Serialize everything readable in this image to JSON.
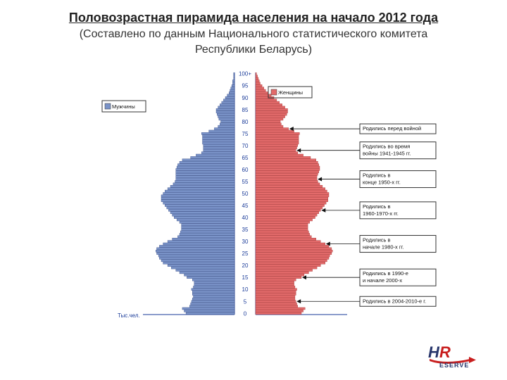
{
  "title": "Половозрастная пирамида населения на начало 2012 года",
  "subtitle_line1": "(Составлено по данным Национального статистического комитета",
  "subtitle_line2": "Республики Беларусь)",
  "chart": {
    "type": "population-pyramid",
    "background_color": "#ffffff",
    "male_color": "#7a93c8",
    "male_border_color": "#3a4f88",
    "female_color": "#e26a6a",
    "female_border_color": "#a83636",
    "axis_color": "#1a3b99",
    "grid_color": "#888888",
    "title_fontsize": 18,
    "label_fontsize": 8,
    "legend_male": "Мужчины",
    "legend_female": "Женщины",
    "x_axis_label": "Тыс.чел.",
    "age_ticks": [
      "0",
      "5",
      "10",
      "15",
      "20",
      "25",
      "30",
      "35",
      "40",
      "45",
      "50",
      "55",
      "60",
      "65",
      "70",
      "75",
      "80",
      "85",
      "90",
      "95",
      "100+"
    ],
    "x_max": 100,
    "male_values": [
      53,
      55,
      57,
      49,
      48,
      47,
      46,
      45,
      46,
      46,
      47,
      45,
      44,
      44,
      46,
      52,
      55,
      60,
      64,
      69,
      73,
      78,
      80,
      82,
      83,
      85,
      86,
      85,
      82,
      78,
      73,
      68,
      62,
      60,
      59,
      58,
      58,
      58,
      60,
      63,
      66,
      68,
      70,
      72,
      74,
      76,
      78,
      80,
      80,
      80,
      78,
      76,
      73,
      70,
      67,
      65,
      64,
      64,
      64,
      64,
      64,
      63,
      62,
      60,
      57,
      48,
      42,
      36,
      34,
      34,
      34,
      35,
      35,
      35,
      35,
      36,
      28,
      22,
      18,
      16,
      15,
      17,
      18,
      19,
      20,
      20,
      18,
      16,
      14,
      12,
      10,
      8,
      6,
      5,
      4,
      3,
      2,
      2,
      1,
      1,
      1
    ],
    "female_values": [
      50,
      52,
      54,
      46,
      45,
      44,
      43,
      43,
      44,
      44,
      45,
      43,
      42,
      42,
      44,
      50,
      53,
      58,
      62,
      67,
      71,
      76,
      78,
      80,
      81,
      83,
      84,
      83,
      80,
      76,
      71,
      66,
      61,
      59,
      58,
      57,
      57,
      57,
      59,
      62,
      65,
      67,
      69,
      71,
      73,
      75,
      77,
      79,
      79,
      80,
      80,
      78,
      76,
      73,
      70,
      68,
      67,
      67,
      68,
      69,
      70,
      70,
      69,
      68,
      66,
      60,
      52,
      46,
      44,
      45,
      46,
      47,
      47,
      47,
      47,
      48,
      42,
      36,
      30,
      28,
      27,
      30,
      32,
      34,
      35,
      35,
      32,
      29,
      26,
      23,
      20,
      17,
      14,
      11,
      9,
      7,
      5,
      4,
      3,
      2,
      1
    ],
    "annotations": [
      {
        "age": 77,
        "text": "Родились перед войной"
      },
      {
        "age": 68,
        "text_lines": [
          "Родились во время",
          "войны 1941-1945 гг."
        ]
      },
      {
        "age": 56,
        "text_lines": [
          "Родились в",
          "конце 1950-х гг."
        ]
      },
      {
        "age": 43,
        "text_lines": [
          "Родились в",
          "1960-1970-х гг."
        ]
      },
      {
        "age": 29,
        "text_lines": [
          "Родились в",
          "начале 1980-х гг."
        ]
      },
      {
        "age": 15,
        "text_lines": [
          "Родились в 1990-е",
          "и начале 2000-х"
        ]
      },
      {
        "age": 5,
        "text": "Родились в 2004-2010-е г."
      }
    ]
  },
  "logo": {
    "prefix": "R",
    "suffix_text": "ESERVE",
    "prefix_color": "#c81e1e",
    "text_color": "#26356b",
    "swoosh_color": "#c81e1e"
  }
}
